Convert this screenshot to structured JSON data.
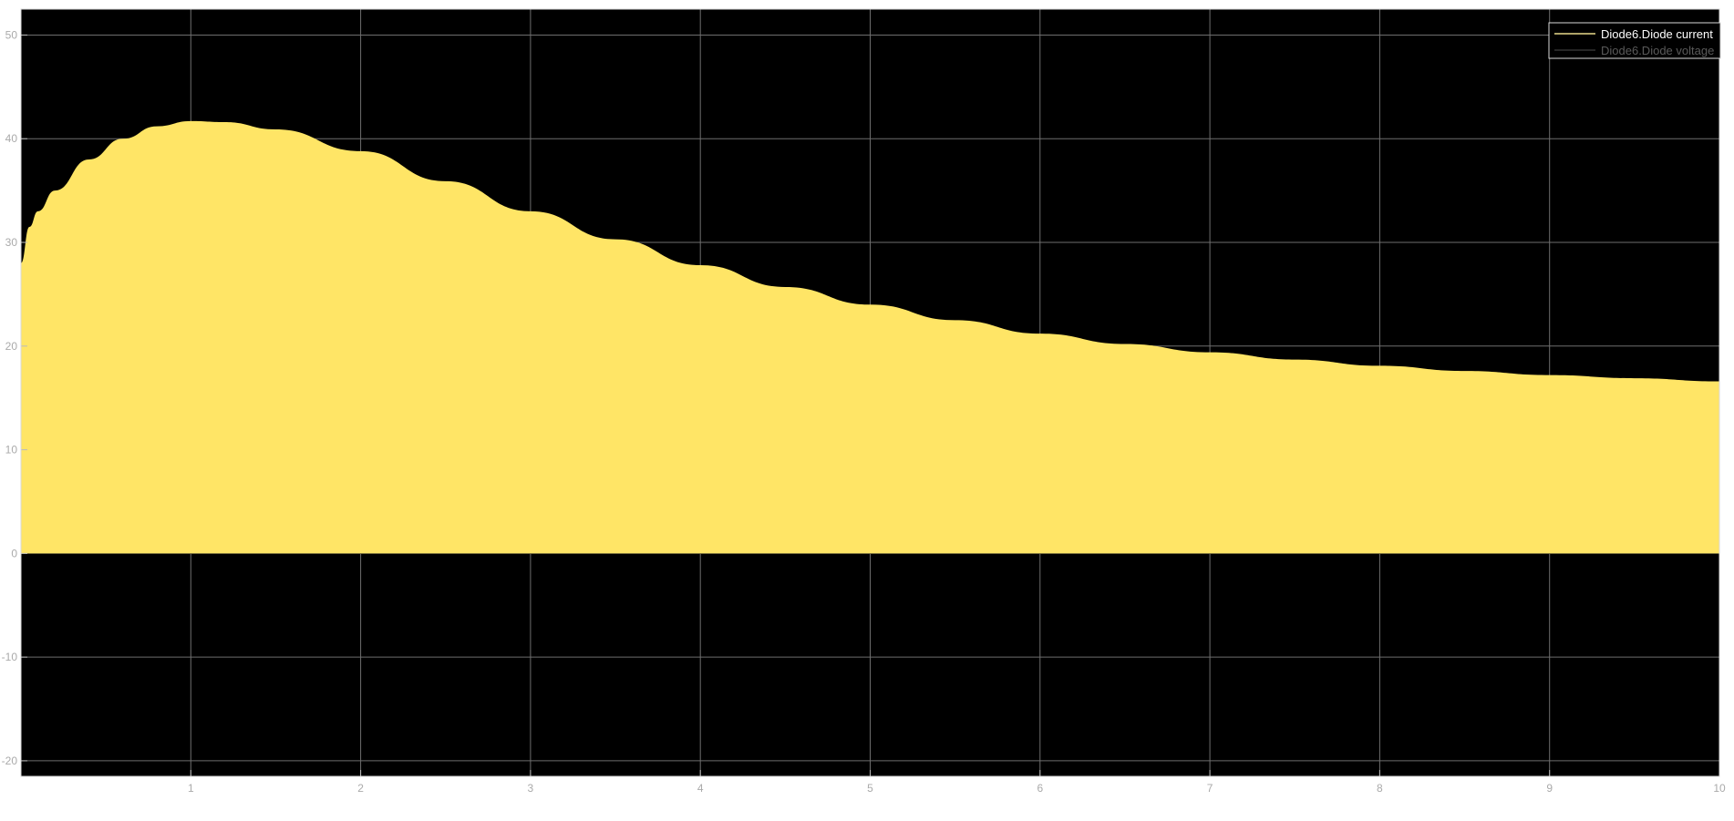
{
  "chart_data": {
    "type": "area",
    "title": "",
    "xlabel": "",
    "ylabel": "",
    "xlim": [
      0,
      10
    ],
    "ylim": [
      -21.5,
      52.5
    ],
    "grid": true,
    "legend_position": "top-right",
    "x_ticks": [
      "1",
      "2",
      "3",
      "4",
      "5",
      "6",
      "7",
      "8",
      "9",
      "10"
    ],
    "y_ticks": [
      "-20",
      "-10",
      "0",
      "10",
      "20",
      "30",
      "40",
      "50"
    ],
    "series": [
      {
        "name": "Diode6.Diode current",
        "color": "#ffe566",
        "style": "dense oscillation filled between 0 and upper envelope",
        "envelope": {
          "x": [
            0,
            0.05,
            0.1,
            0.2,
            0.4,
            0.6,
            0.8,
            1.0,
            1.2,
            1.5,
            2.0,
            2.5,
            3.0,
            3.5,
            4.0,
            4.5,
            5.0,
            5.5,
            6.0,
            6.5,
            7.0,
            7.5,
            8.0,
            8.5,
            9.0,
            9.5,
            10.0
          ],
          "y": [
            28.0,
            31.5,
            33.0,
            35.0,
            38.0,
            40.0,
            41.2,
            41.7,
            41.6,
            40.9,
            38.8,
            35.9,
            33.0,
            30.3,
            27.8,
            25.7,
            24.0,
            22.5,
            21.2,
            20.2,
            19.4,
            18.7,
            18.1,
            17.6,
            17.2,
            16.9,
            16.6
          ]
        },
        "lower": 0
      },
      {
        "name": "Diode6.Diode voltage",
        "color": "#1a1a1a"
      }
    ]
  }
}
